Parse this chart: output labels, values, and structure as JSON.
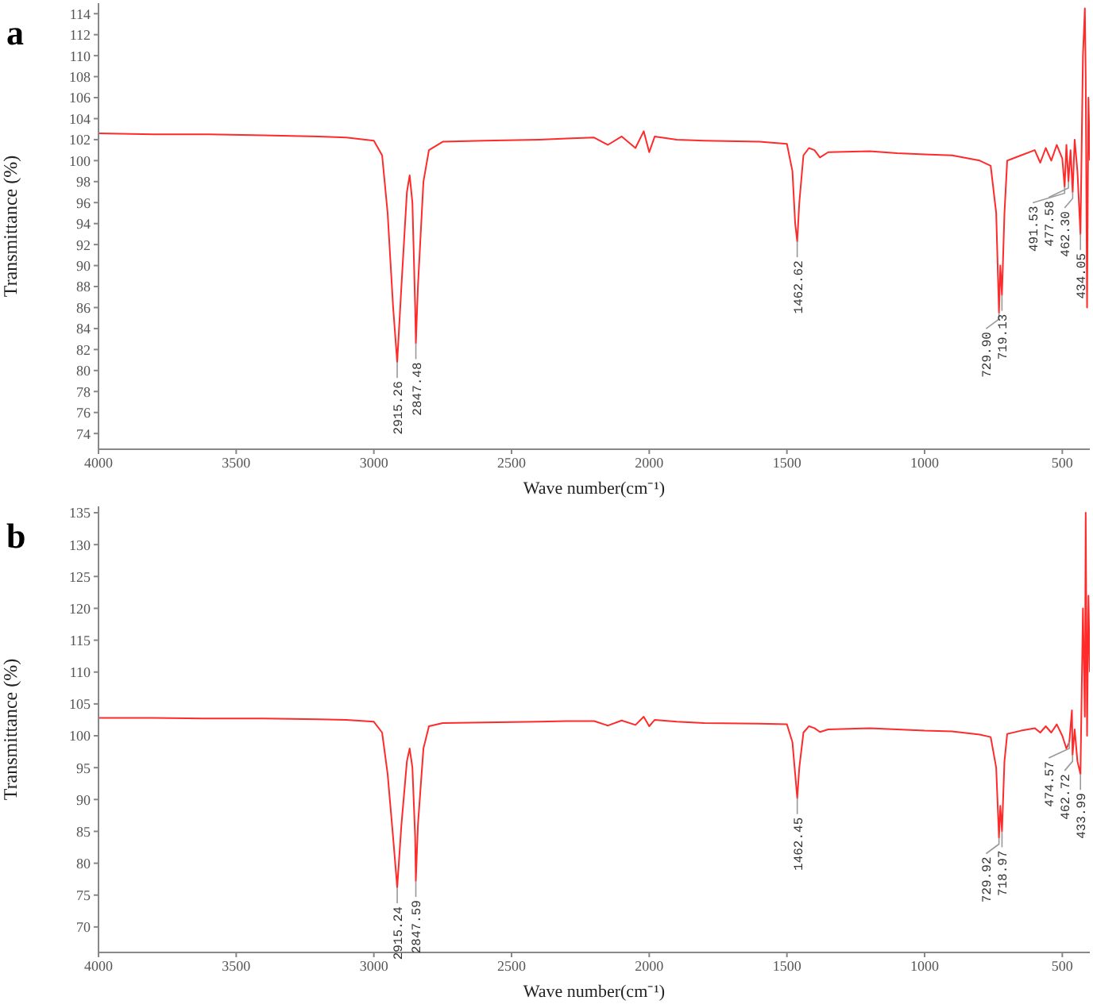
{
  "chart_data": [
    {
      "type": "line",
      "title": "a",
      "xlabel": "Wave number(cm⁻¹)",
      "ylabel": "Transmittance (%)",
      "xlim": [
        4000,
        400
      ],
      "ylim": [
        72.5,
        115
      ],
      "xticks": [
        4000,
        3500,
        3000,
        2500,
        2000,
        1500,
        1000,
        500
      ],
      "yticks": [
        74,
        76,
        78,
        80,
        82,
        84,
        86,
        88,
        90,
        92,
        94,
        96,
        98,
        100,
        102,
        104,
        106,
        108,
        110,
        112,
        114
      ],
      "grid": false,
      "legend": false,
      "marker": "none",
      "line_style": "solid",
      "series": [
        {
          "color": "#ff2a2a",
          "x": [
            4000,
            3800,
            3600,
            3400,
            3200,
            3100,
            3000,
            2970,
            2950,
            2930,
            2915.26,
            2900,
            2880,
            2870,
            2860,
            2850,
            2847.48,
            2840,
            2820,
            2800,
            2750,
            2600,
            2400,
            2300,
            2200,
            2150,
            2100,
            2050,
            2020,
            2000,
            1980,
            1900,
            1800,
            1600,
            1500,
            1480,
            1470,
            1462.62,
            1455,
            1440,
            1420,
            1400,
            1380,
            1350,
            1200,
            1100,
            1000,
            900,
            800,
            760,
            740,
            729.9,
            725,
            719.13,
            710,
            700,
            650,
            600,
            580,
            560,
            540,
            520,
            500,
            491.53,
            485,
            477.58,
            470,
            462.3,
            455,
            445,
            434.05,
            425,
            418,
            415,
            410,
            405,
            400
          ],
          "values": [
            102.6,
            102.5,
            102.5,
            102.4,
            102.3,
            102.2,
            101.9,
            100.5,
            95,
            86,
            80.8,
            88,
            97,
            98.6,
            96,
            86,
            82.6,
            88,
            98,
            101,
            101.8,
            101.9,
            102,
            102.1,
            102.2,
            101.5,
            102.3,
            101.2,
            102.8,
            100.8,
            102.3,
            102,
            101.9,
            101.8,
            101.6,
            99,
            94,
            92.3,
            96,
            100.5,
            101.2,
            101,
            100.3,
            100.8,
            100.9,
            100.7,
            100.6,
            100.5,
            100,
            99.5,
            95,
            85.5,
            90,
            87.2,
            95,
            100,
            100.5,
            101,
            99.8,
            101.2,
            100,
            101.5,
            100.2,
            97.5,
            101.5,
            98,
            101,
            97,
            102,
            99,
            93,
            110,
            114.5,
            108,
            86,
            106,
            100
          ]
        }
      ],
      "annotations": [
        {
          "text": "2915.26",
          "x": 2915.26,
          "y": 80.8
        },
        {
          "text": "2847.48",
          "x": 2847.48,
          "y": 82.6
        },
        {
          "text": "1462.62",
          "x": 1462.62,
          "y": 92.3
        },
        {
          "text": "729.90",
          "x": 729.9,
          "y": 85.5
        },
        {
          "text": "719.13",
          "x": 719.13,
          "y": 87.2
        },
        {
          "text": "491.53",
          "x": 491.53,
          "y": 97.5
        },
        {
          "text": "477.58",
          "x": 477.58,
          "y": 98
        },
        {
          "text": "462.30",
          "x": 462.3,
          "y": 97
        },
        {
          "text": "434.05",
          "x": 434.05,
          "y": 93
        }
      ]
    },
    {
      "type": "line",
      "title": "b",
      "xlabel": "Wave number(cm⁻¹)",
      "ylabel": "Transmittance (%)",
      "xlim": [
        4000,
        400
      ],
      "ylim": [
        66,
        136
      ],
      "xticks": [
        4000,
        3500,
        3000,
        2500,
        2000,
        1500,
        1000,
        500
      ],
      "yticks": [
        70,
        75,
        80,
        85,
        90,
        95,
        100,
        105,
        110,
        115,
        120,
        125,
        130,
        135
      ],
      "grid": false,
      "legend": false,
      "marker": "none",
      "line_style": "solid",
      "series": [
        {
          "color": "#ff2a2a",
          "x": [
            4000,
            3800,
            3600,
            3400,
            3200,
            3100,
            3000,
            2970,
            2950,
            2930,
            2915.24,
            2900,
            2880,
            2870,
            2860,
            2850,
            2847.59,
            2840,
            2820,
            2800,
            2750,
            2600,
            2400,
            2300,
            2200,
            2150,
            2100,
            2050,
            2020,
            2000,
            1980,
            1900,
            1800,
            1600,
            1500,
            1480,
            1470,
            1462.45,
            1455,
            1440,
            1420,
            1400,
            1380,
            1350,
            1200,
            1100,
            1000,
            900,
            800,
            760,
            740,
            729.92,
            725,
            718.97,
            710,
            700,
            650,
            600,
            580,
            560,
            540,
            520,
            500,
            485,
            474.57,
            465,
            462.72,
            455,
            445,
            433.99,
            425,
            418,
            415,
            410,
            405,
            400
          ],
          "values": [
            102.8,
            102.8,
            102.7,
            102.7,
            102.6,
            102.5,
            102.2,
            100.5,
            94,
            84,
            76.2,
            86,
            96,
            98,
            95,
            84,
            77.2,
            86,
            98,
            101.5,
            102,
            102.1,
            102.2,
            102.3,
            102.3,
            101.6,
            102.4,
            101.7,
            103,
            101.5,
            102.5,
            102.2,
            102,
            101.9,
            101.8,
            99,
            94,
            90.2,
            95,
            100.5,
            101.5,
            101.2,
            100.6,
            101,
            101.2,
            101,
            100.8,
            100.7,
            100.2,
            99.8,
            95,
            84,
            89,
            85,
            96,
            100.3,
            100.8,
            101.2,
            100.5,
            101.5,
            100.5,
            101.8,
            100,
            98,
            99,
            104,
            97,
            101,
            96,
            94,
            120,
            103,
            135,
            100,
            122,
            110
          ]
        }
      ],
      "annotations": [
        {
          "text": "2915.24",
          "x": 2915.24,
          "y": 76.2
        },
        {
          "text": "2847.59",
          "x": 2847.59,
          "y": 77.2
        },
        {
          "text": "1462.45",
          "x": 1462.45,
          "y": 90.2
        },
        {
          "text": "729.92",
          "x": 729.92,
          "y": 84
        },
        {
          "text": "718.97",
          "x": 718.97,
          "y": 85
        },
        {
          "text": "474.57",
          "x": 474.57,
          "y": 99
        },
        {
          "text": "462.72",
          "x": 462.72,
          "y": 97
        },
        {
          "text": "433.99",
          "x": 433.99,
          "y": 94
        }
      ]
    }
  ]
}
